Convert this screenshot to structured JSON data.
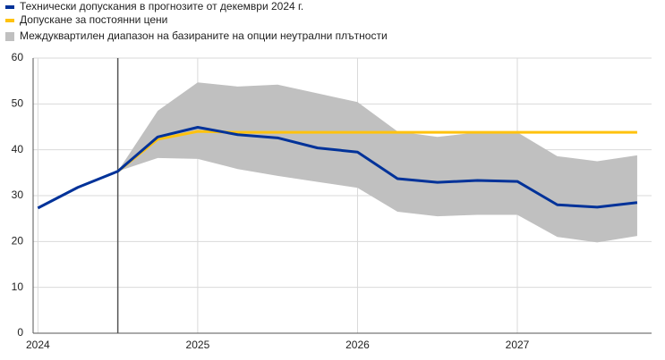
{
  "chart_data": {
    "type": "line",
    "x": [
      2024,
      2024.25,
      2024.5,
      2024.75,
      2025,
      2025.25,
      2025.5,
      2025.75,
      2026,
      2026.25,
      2026.5,
      2026.75,
      2027,
      2027.25,
      2027.5,
      2027.75
    ],
    "series": [
      {
        "name": "Технически допускания в прогнозите от декември 2024 г.",
        "color": "#003299",
        "values": [
          27.3,
          31.8,
          35.3,
          42.8,
          44.9,
          43.3,
          42.6,
          40.4,
          39.5,
          33.7,
          32.9,
          33.3,
          33.1,
          28.0,
          27.5,
          28.5
        ]
      },
      {
        "name": "Допускане за постоянни цени",
        "color": "#ffc20e",
        "values": [
          null,
          null,
          35.3,
          42.3,
          44.0,
          43.8,
          43.8,
          43.8,
          43.8,
          43.8,
          43.8,
          43.8,
          43.8,
          43.8,
          43.8,
          43.8
        ]
      }
    ],
    "band": {
      "name": "Междуквартилен диапазон на базираните на опции неутрални плътности",
      "color": "#c0c0c0",
      "low": [
        null,
        null,
        35.3,
        38.2,
        38.0,
        35.8,
        34.3,
        33.0,
        31.7,
        26.5,
        25.5,
        25.8,
        25.8,
        21.0,
        19.8,
        21.2
      ],
      "high": [
        null,
        null,
        35.3,
        48.5,
        54.7,
        53.8,
        54.2,
        52.3,
        50.4,
        44.0,
        42.8,
        43.8,
        43.8,
        38.6,
        37.5,
        38.8
      ]
    },
    "vline": 2024.5,
    "xlim": [
      2023.97,
      2027.84
    ],
    "xticks": [
      2024,
      2025,
      2026,
      2027
    ],
    "ylim": [
      0,
      60
    ],
    "yticks": [
      0,
      10,
      20,
      30,
      40,
      50,
      60
    ],
    "grid": true
  }
}
